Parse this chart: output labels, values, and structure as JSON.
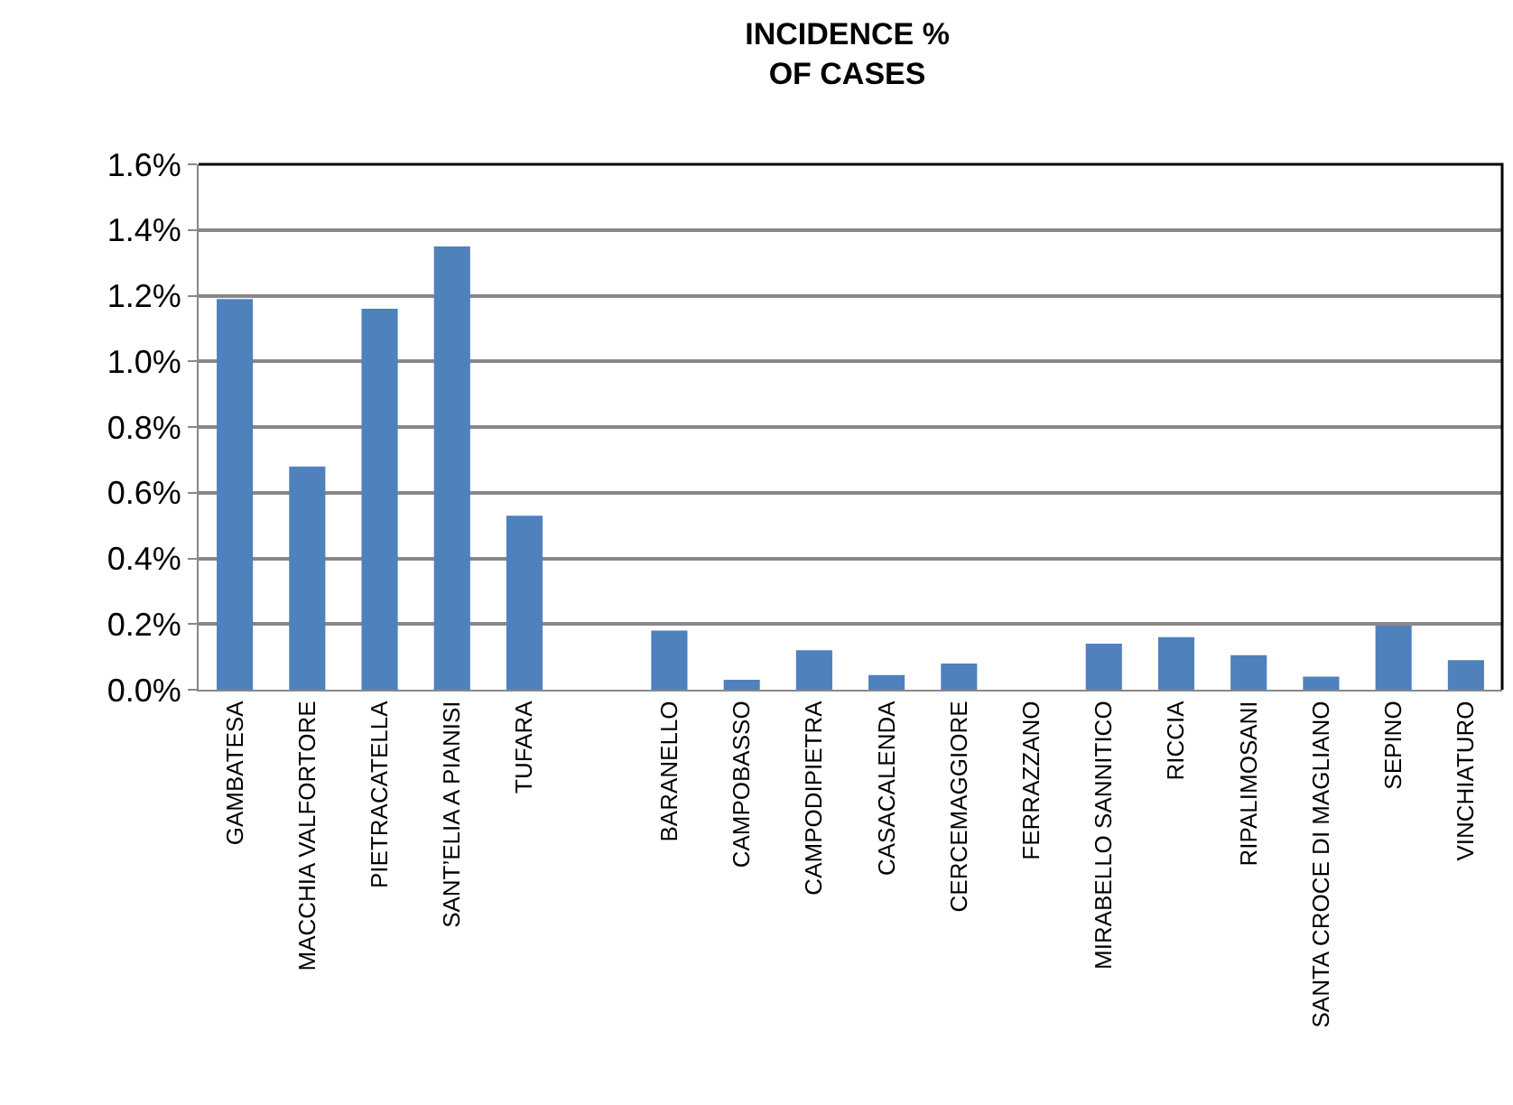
{
  "chart_data": {
    "type": "bar",
    "title": "INCIDENCE %\nOF CASES",
    "categories": [
      "GAMBATESA",
      "MACCHIA VALFORTORE",
      "PIETRACATELLA",
      "SANT’ELIA A PIANISI",
      "TUFARA",
      null,
      "BARANELLO",
      "CAMPOBASSO",
      "CAMPODIPIETRA",
      "CASACALENDA",
      "CERCEMAGGIORE",
      "FERRAZZANO",
      "MIRABELLO SANNITICO",
      "RICCIA",
      "RIPALIMOSANI",
      "SANTA CROCE DI MAGLIANO",
      "SEPINO",
      "VINCHIATURO"
    ],
    "values": [
      1.19,
      0.68,
      1.16,
      1.35,
      0.53,
      null,
      0.18,
      0.03,
      0.12,
      0.045,
      0.08,
      0,
      0.14,
      0.16,
      0.105,
      0.04,
      0.195,
      0.09
    ],
    "color": "#4f81bd",
    "ylim": [
      0,
      1.6
    ],
    "yticks": [
      {
        "value": 0,
        "label": "0.0%"
      },
      {
        "value": 0.2,
        "label": "0.2%"
      },
      {
        "value": 0.4,
        "label": "0.4%"
      },
      {
        "value": 0.6,
        "label": "0.6%"
      },
      {
        "value": 0.8,
        "label": "0.8%"
      },
      {
        "value": 1.0,
        "label": "1.0%"
      },
      {
        "value": 1.2,
        "label": "1.2%"
      },
      {
        "value": 1.4,
        "label": "1.4%"
      },
      {
        "value": 1.6,
        "label": "1.6%"
      }
    ],
    "grid": "y",
    "legend": false
  }
}
